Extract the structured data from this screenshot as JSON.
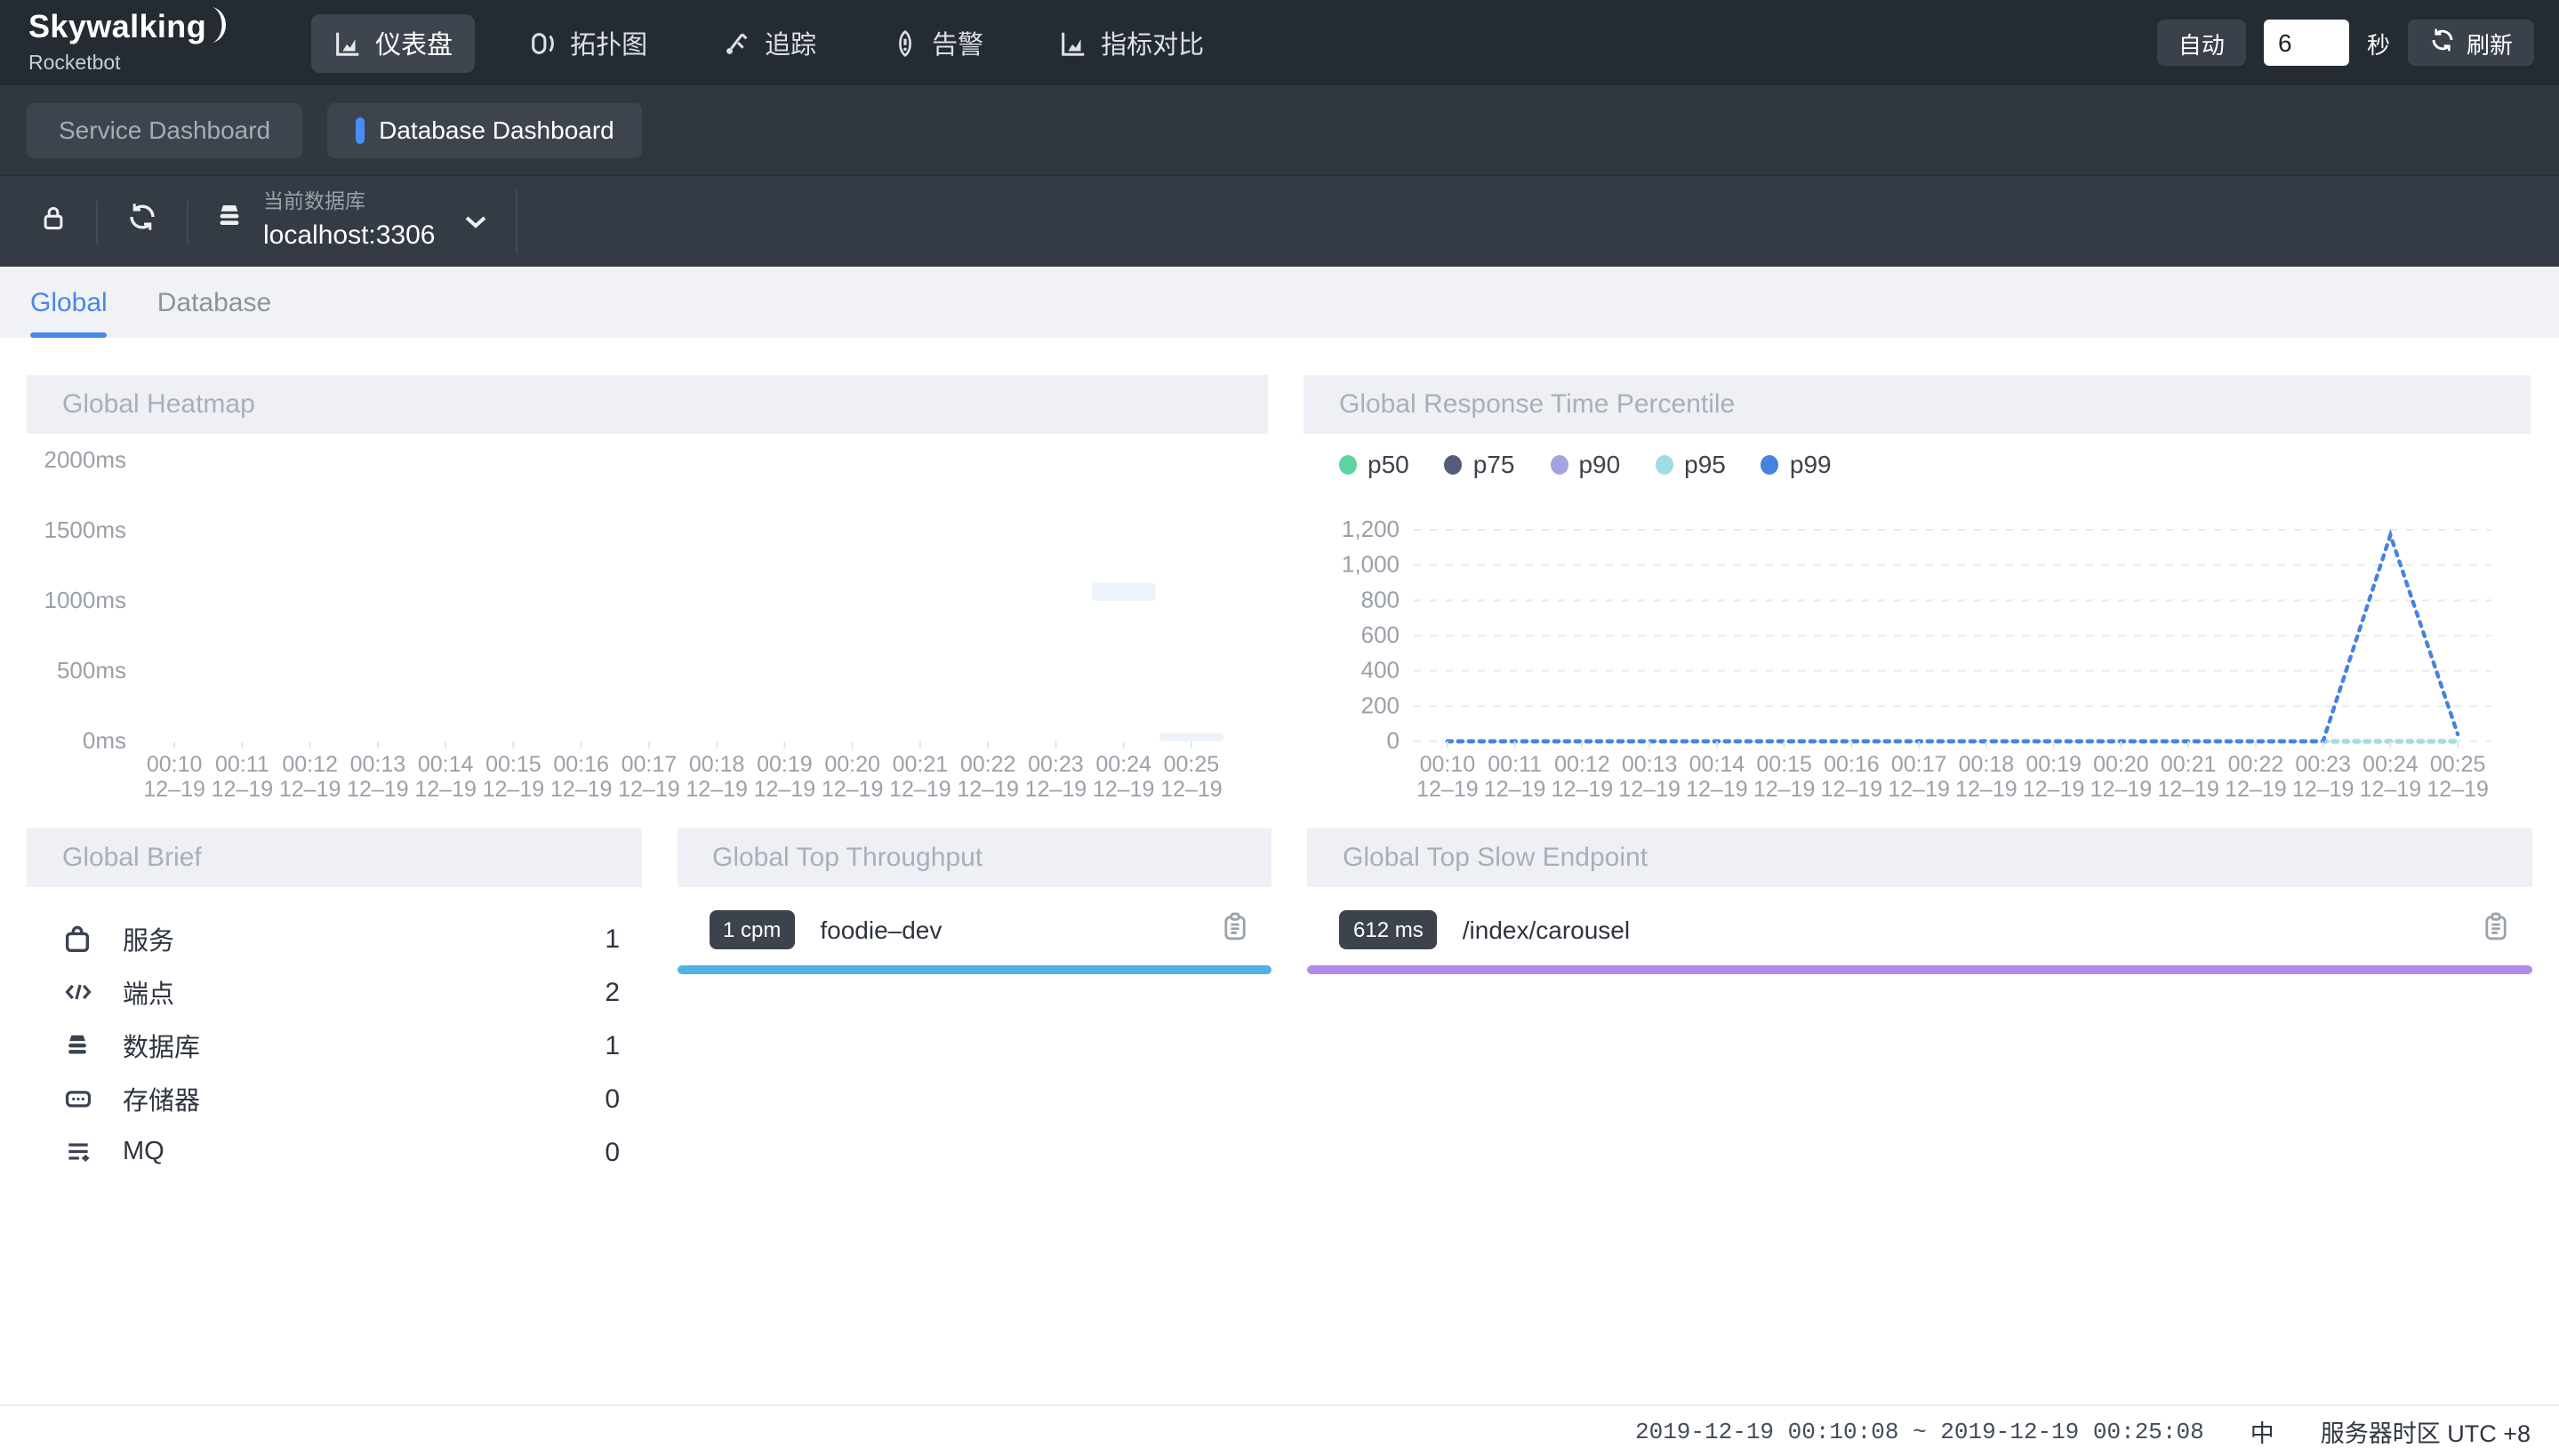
{
  "navbar": {
    "brand": {
      "title": "Skywalking",
      "subtitle": "Rocketbot"
    },
    "items": [
      {
        "label": "仪表盘",
        "icon": "dashboard-icon",
        "active": true
      },
      {
        "label": "拓扑图",
        "icon": "topology-icon",
        "active": false
      },
      {
        "label": "追踪",
        "icon": "trace-icon",
        "active": false
      },
      {
        "label": "告警",
        "icon": "alarm-icon",
        "active": false
      },
      {
        "label": "指标对比",
        "icon": "compare-icon",
        "active": false
      }
    ],
    "auto_label": "自动",
    "interval_value": "6",
    "seconds_label": "秒",
    "refresh_label": "刷新"
  },
  "dashboard_tabs": {
    "items": [
      {
        "label": "Service Dashboard",
        "active": false
      },
      {
        "label": "Database Dashboard",
        "active": true
      }
    ]
  },
  "database_bar": {
    "current_label": "当前数据库",
    "current_value": "localhost:3306"
  },
  "view_tabs": {
    "items": [
      {
        "label": "Global",
        "active": true
      },
      {
        "label": "Database",
        "active": false
      }
    ]
  },
  "panels": {
    "heatmap": {
      "title": "Global Heatmap"
    },
    "percentile": {
      "title": "Global Response Time Percentile"
    },
    "brief": {
      "title": "Global Brief",
      "rows": [
        {
          "icon": "service-icon",
          "label": "服务",
          "value": "1"
        },
        {
          "icon": "endpoint-icon",
          "label": "端点",
          "value": "2"
        },
        {
          "icon": "database-icon",
          "label": "数据库",
          "value": "1"
        },
        {
          "icon": "storage-icon",
          "label": "存储器",
          "value": "0"
        },
        {
          "icon": "mq-icon",
          "label": "MQ",
          "value": "0"
        }
      ]
    },
    "throughput": {
      "title": "Global Top Throughput",
      "badge": "1 cpm",
      "name": "foodie–dev",
      "bar_color": "#52b2e4"
    },
    "slow": {
      "title": "Global Top Slow Endpoint",
      "badge": "612 ms",
      "name": "/index/carousel",
      "bar_color": "#b289ea"
    }
  },
  "footer": {
    "time_range": "2019-12-19 00:10:08 ~ 2019-12-19 00:25:08",
    "lang": "中",
    "timezone": "服务器时区 UTC +8"
  },
  "chart_data": [
    {
      "type": "heatmap",
      "title": "Global Heatmap",
      "x": [
        "00:10",
        "00:11",
        "00:12",
        "00:13",
        "00:14",
        "00:15",
        "00:16",
        "00:17",
        "00:18",
        "00:19",
        "00:20",
        "00:21",
        "00:22",
        "00:23",
        "00:24",
        "00:25"
      ],
      "x_sub": "12–19",
      "yticks": [
        "2000ms",
        "1500ms",
        "1000ms",
        "500ms",
        "0ms"
      ],
      "ytick_values": [
        2000,
        1500,
        1000,
        500,
        0
      ],
      "ylim": [
        0,
        2000
      ],
      "grid": false,
      "cells": [
        {
          "x": "00:24",
          "value_range": [
            1000,
            1130
          ],
          "color": "#eef3f9"
        },
        {
          "x": "00:25",
          "value_range": [
            0,
            60
          ],
          "color": "#eef3f9"
        }
      ]
    },
    {
      "type": "line",
      "title": "Global Response Time Percentile",
      "x": [
        "00:10",
        "00:11",
        "00:12",
        "00:13",
        "00:14",
        "00:15",
        "00:16",
        "00:17",
        "00:18",
        "00:19",
        "00:20",
        "00:21",
        "00:22",
        "00:23",
        "00:24",
        "00:25"
      ],
      "x_sub": "12–19",
      "ylim": [
        0,
        1200
      ],
      "yticks": [
        "1,200",
        "1,000",
        "800",
        "600",
        "400",
        "200",
        "0"
      ],
      "ytick_values": [
        1200,
        1000,
        800,
        600,
        400,
        200,
        0
      ],
      "grid": "dashed",
      "legend_position": "top",
      "line_style": "dotted",
      "series": [
        {
          "name": "p50",
          "color": "#5ed3a2",
          "values": [
            0,
            0,
            0,
            0,
            0,
            0,
            0,
            0,
            0,
            0,
            0,
            0,
            0,
            0,
            0,
            0
          ]
        },
        {
          "name": "p75",
          "color": "#555d78",
          "values": [
            0,
            0,
            0,
            0,
            0,
            0,
            0,
            0,
            0,
            0,
            0,
            0,
            0,
            0,
            0,
            0
          ]
        },
        {
          "name": "p90",
          "color": "#a5a2e0",
          "values": [
            0,
            0,
            0,
            0,
            0,
            0,
            0,
            0,
            0,
            0,
            0,
            0,
            0,
            0,
            0,
            0
          ]
        },
        {
          "name": "p95",
          "color": "#a0dce6",
          "values": [
            0,
            0,
            0,
            0,
            0,
            0,
            0,
            0,
            0,
            0,
            0,
            0,
            0,
            0,
            0,
            0
          ]
        },
        {
          "name": "p99",
          "color": "#4583de",
          "values": [
            0,
            0,
            0,
            0,
            0,
            0,
            0,
            0,
            0,
            0,
            0,
            0,
            0,
            0,
            1170,
            40
          ]
        }
      ]
    }
  ]
}
